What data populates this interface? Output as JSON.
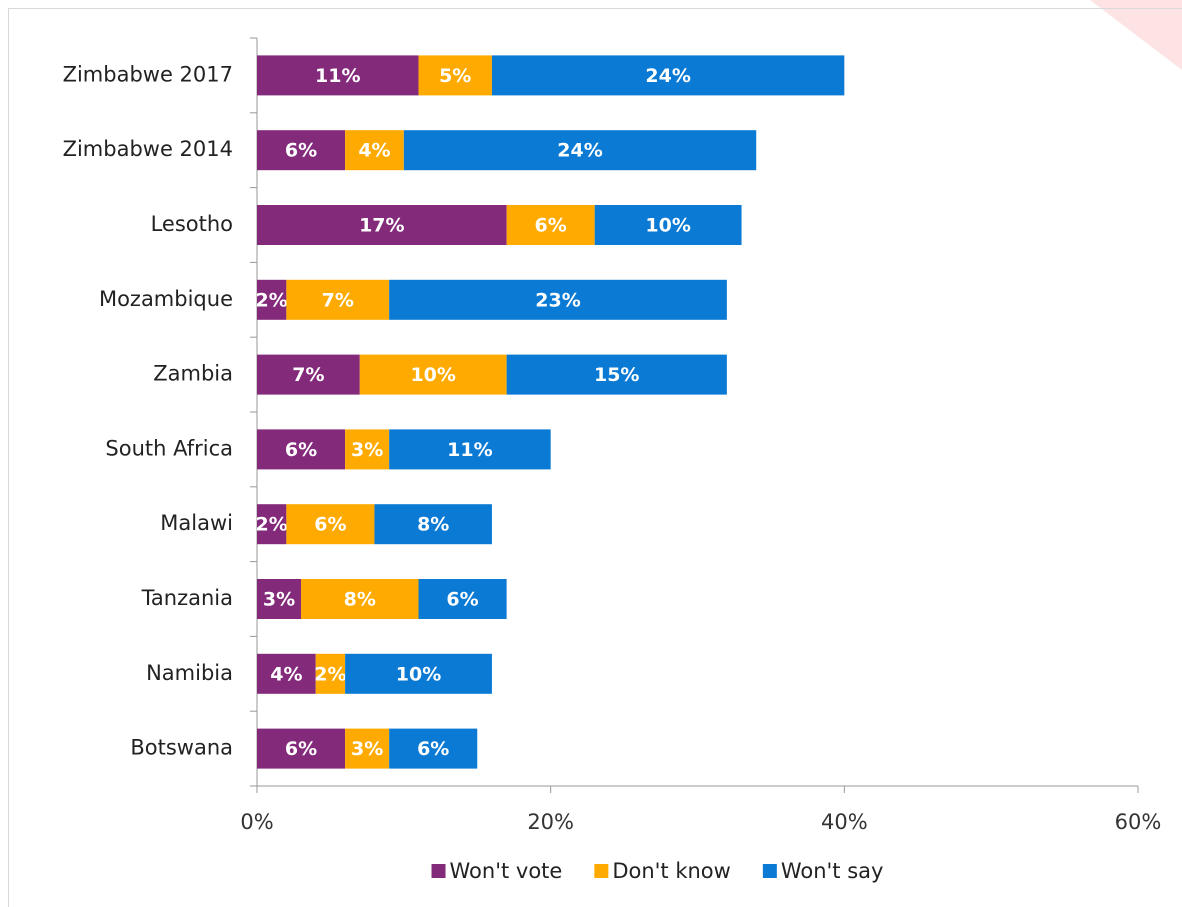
{
  "chart_data": {
    "type": "stacked_bar_horizontal",
    "categories": [
      "Zimbabwe 2017",
      "Zimbabwe 2014",
      "Lesotho",
      "Mozambique",
      "Zambia",
      "South Africa",
      "Malawi",
      "Tanzania",
      "Namibia",
      "Botswana"
    ],
    "series": [
      {
        "name": "Won't vote",
        "color": "#832a7b",
        "values": [
          11,
          6,
          17,
          2,
          7,
          6,
          2,
          3,
          4,
          6
        ],
        "value_labels": [
          "11%",
          "6%",
          "17%",
          "2%",
          "7%",
          "6%",
          "2%",
          "3%",
          "4%",
          "6%"
        ]
      },
      {
        "name": "Don't know",
        "color": "#ffaa00",
        "values": [
          5,
          4,
          6,
          7,
          10,
          3,
          6,
          8,
          2,
          3
        ],
        "value_labels": [
          "5%",
          "4%",
          "6%",
          "7%",
          "10%",
          "3%",
          "6%",
          "8%",
          "2%",
          "3%"
        ]
      },
      {
        "name": "Won't say",
        "color": "#0a7ad4",
        "values": [
          24,
          24,
          10,
          23,
          15,
          11,
          8,
          6,
          10,
          6
        ],
        "value_labels": [
          "24%",
          "24%",
          "10%",
          "23%",
          "15%",
          "11%",
          "8%",
          "6%",
          "10%",
          "6%"
        ]
      }
    ],
    "xlim": [
      0,
      60
    ],
    "xticks": [
      {
        "value": 0,
        "label": "0%"
      },
      {
        "value": 20,
        "label": "20%"
      },
      {
        "value": 40,
        "label": "40%"
      },
      {
        "value": 60,
        "label": "60%"
      }
    ],
    "legend": "bottom"
  }
}
